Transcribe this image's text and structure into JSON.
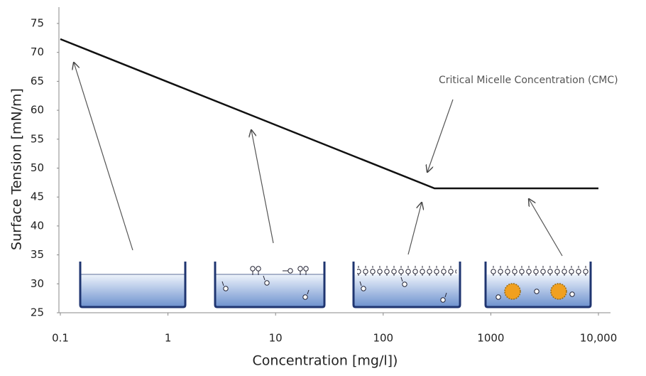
{
  "chart_data": {
    "type": "line",
    "x_label": "Concentration [mg/l])",
    "y_label": "Surface Tension [mN/m]",
    "annotation": "Critical Micelle Concentration (CMC)",
    "x": [
      0.1,
      300,
      10000
    ],
    "values": [
      72.3,
      46.5,
      46.5
    ],
    "color": "#111111",
    "xlog": true,
    "xlim": [
      0.1,
      10000
    ],
    "xticks": [
      0.1,
      1,
      10,
      100,
      1000,
      {
        "value": 10000,
        "label": "10,000"
      }
    ],
    "ylim": [
      25,
      75
    ],
    "yticks": [
      25,
      30,
      35,
      40,
      45,
      50,
      55,
      60,
      65,
      70,
      75
    ],
    "grid": false
  }
}
